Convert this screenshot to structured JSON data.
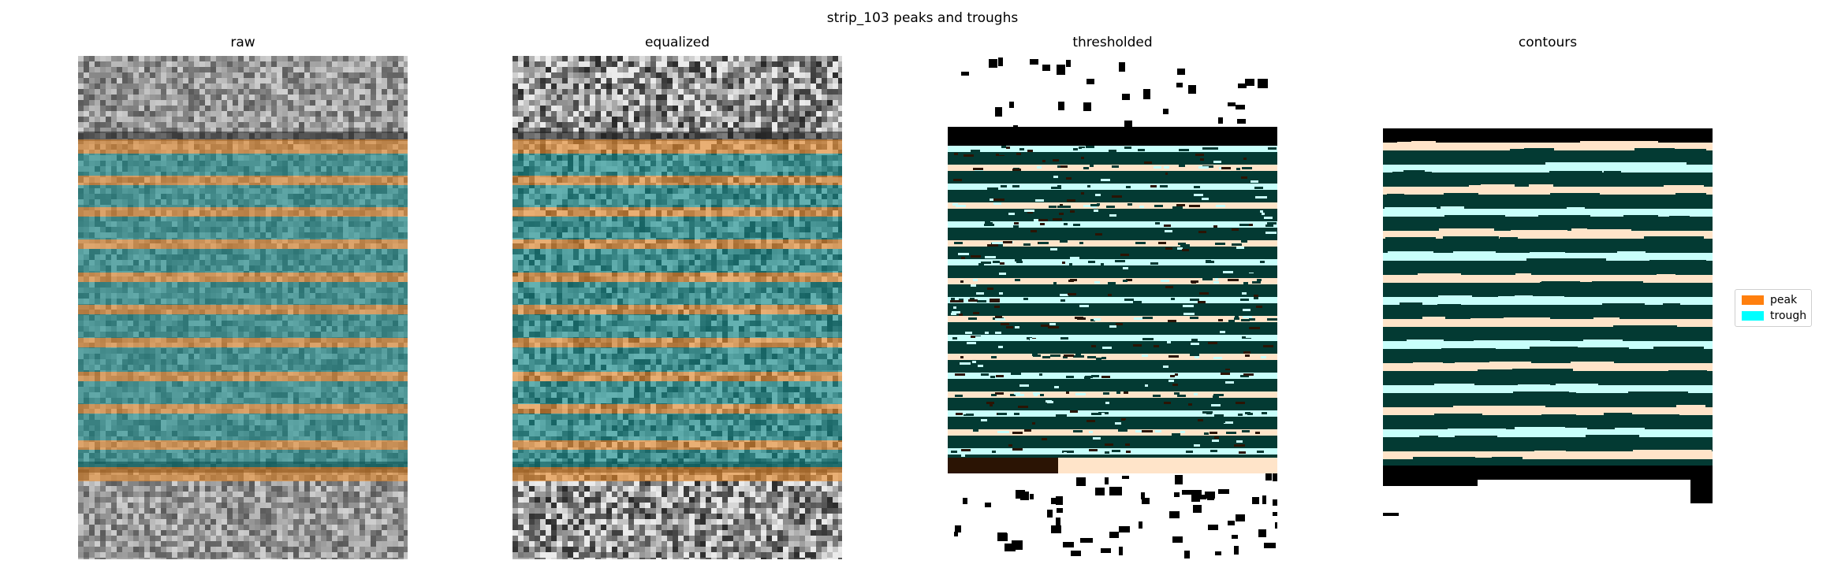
{
  "figure": {
    "title": "strip_103 peaks and troughs",
    "panels": [
      {
        "title": "raw",
        "kind": "raw"
      },
      {
        "title": "equalized",
        "kind": "equalized"
      },
      {
        "title": "thresholded",
        "kind": "thresholded"
      },
      {
        "title": "contours",
        "kind": "contours"
      }
    ],
    "legend": {
      "items": [
        {
          "label": "peak",
          "color": "#ff7f0e"
        },
        {
          "label": "trough",
          "color": "#00ffff"
        }
      ],
      "placement": "right"
    },
    "colors": {
      "peak_band": "#e88a2c",
      "trough_band": "#0a8a8a",
      "thresholded_dark": "#033a33",
      "thresholded_black": "#000000",
      "thresholded_cream": "#ffe4c9",
      "thresholded_brown": "#2b1404",
      "thresholded_cyan": "#c8fffb"
    }
  }
}
